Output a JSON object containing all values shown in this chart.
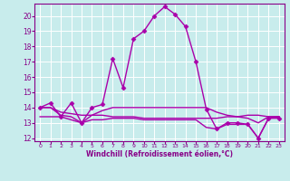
{
  "xlabel": "Windchill (Refroidissement éolien,°C)",
  "background_color": "#c8ecec",
  "grid_color": "#ffffff",
  "line_color": "#aa00aa",
  "xlim": [
    -0.5,
    23.5
  ],
  "ylim": [
    11.8,
    20.8
  ],
  "yticks": [
    12,
    13,
    14,
    15,
    16,
    17,
    18,
    19,
    20
  ],
  "xticks": [
    0,
    1,
    2,
    3,
    4,
    5,
    6,
    7,
    8,
    9,
    10,
    11,
    12,
    13,
    14,
    15,
    16,
    17,
    18,
    19,
    20,
    21,
    22,
    23
  ],
  "series": [
    {
      "x": [
        0,
        1,
        2,
        3,
        4,
        5,
        6,
        7,
        8,
        9,
        10,
        11,
        12,
        13,
        14,
        15,
        16,
        17,
        18,
        19,
        20,
        21,
        22,
        23
      ],
      "y": [
        14.0,
        14.3,
        13.4,
        14.3,
        13.0,
        14.0,
        14.2,
        17.2,
        15.3,
        18.5,
        19.0,
        20.0,
        20.6,
        20.1,
        19.3,
        17.0,
        13.9,
        12.6,
        13.0,
        13.0,
        12.9,
        12.0,
        13.3,
        13.3
      ],
      "marker": "D",
      "markersize": 2.5,
      "linewidth": 1.0,
      "has_marker": true
    },
    {
      "x": [
        0,
        1,
        2,
        3,
        4,
        5,
        6,
        7,
        8,
        9,
        10,
        11,
        12,
        13,
        14,
        15,
        16,
        17,
        18,
        19,
        20,
        21,
        22,
        23
      ],
      "y": [
        14.0,
        14.0,
        13.7,
        13.6,
        13.5,
        13.5,
        13.5,
        13.4,
        13.4,
        13.4,
        13.3,
        13.3,
        13.3,
        13.3,
        13.3,
        13.3,
        13.3,
        13.3,
        13.4,
        13.4,
        13.5,
        13.5,
        13.4,
        13.4
      ],
      "marker": null,
      "markersize": 0,
      "linewidth": 1.0,
      "has_marker": false
    },
    {
      "x": [
        0,
        1,
        2,
        3,
        4,
        5,
        6,
        7,
        8,
        9,
        10,
        11,
        12,
        13,
        14,
        15,
        16,
        17,
        18,
        19,
        20,
        21,
        22,
        23
      ],
      "y": [
        14.0,
        14.0,
        13.5,
        13.4,
        13.0,
        13.5,
        13.8,
        14.0,
        14.0,
        14.0,
        14.0,
        14.0,
        14.0,
        14.0,
        14.0,
        14.0,
        14.0,
        13.7,
        13.5,
        13.4,
        13.3,
        13.0,
        13.4,
        13.4
      ],
      "marker": null,
      "markersize": 0,
      "linewidth": 1.0,
      "has_marker": false
    },
    {
      "x": [
        0,
        1,
        2,
        3,
        4,
        5,
        6,
        7,
        8,
        9,
        10,
        11,
        12,
        13,
        14,
        15,
        16,
        17,
        18,
        19,
        20,
        21,
        22,
        23
      ],
      "y": [
        13.4,
        13.4,
        13.4,
        13.2,
        13.0,
        13.2,
        13.2,
        13.3,
        13.3,
        13.3,
        13.2,
        13.2,
        13.2,
        13.2,
        13.2,
        13.2,
        12.7,
        12.6,
        12.9,
        12.9,
        12.9,
        12.0,
        13.3,
        13.4
      ],
      "marker": null,
      "markersize": 0,
      "linewidth": 1.0,
      "has_marker": false
    }
  ]
}
